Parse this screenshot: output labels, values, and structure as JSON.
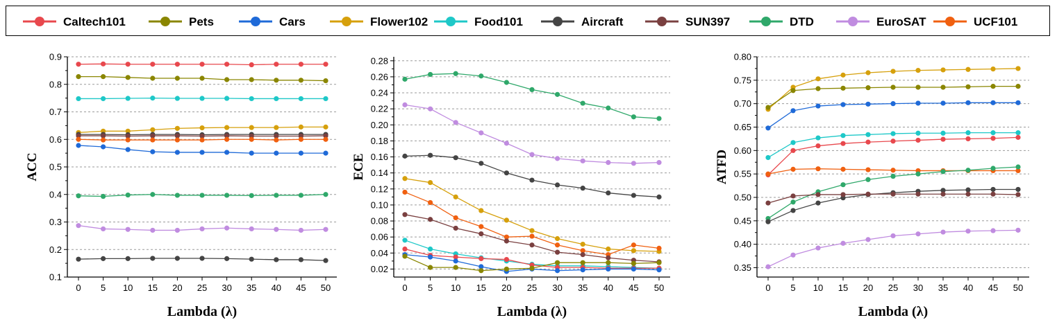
{
  "legend": {
    "entries": [
      {
        "name": "Caltech101",
        "color": "#e8484d"
      },
      {
        "name": "Pets",
        "color": "#8a8600"
      },
      {
        "name": "Cars",
        "color": "#1f6ad8"
      },
      {
        "name": "Flower102",
        "color": "#d6a00c"
      },
      {
        "name": "Food101",
        "color": "#1ec8c8"
      },
      {
        "name": "Aircraft",
        "color": "#444444"
      },
      {
        "name": "SUN397",
        "color": "#7a4040"
      },
      {
        "name": "DTD",
        "color": "#2fa86a"
      },
      {
        "name": "EuroSAT",
        "color": "#c08ce0"
      },
      {
        "name": "UCF101",
        "color": "#f06010"
      }
    ]
  },
  "chart_data": [
    {
      "type": "line",
      "ylabel": "ACC",
      "xlabel": "Lambda (λ)",
      "x": [
        0,
        5,
        10,
        15,
        20,
        25,
        30,
        35,
        40,
        45,
        50
      ],
      "ylim": [
        0.1,
        0.9
      ],
      "yticks": [
        "0.1",
        "0.2",
        "0.3",
        "0.4",
        "0.5",
        "0.6",
        "0.7",
        "0.8",
        "0.9"
      ],
      "grid": "dashed-horizontal",
      "series": [
        {
          "name": "Caltech101",
          "values": [
            0.873,
            0.874,
            0.873,
            0.873,
            0.873,
            0.873,
            0.873,
            0.871,
            0.873,
            0.873,
            0.873
          ]
        },
        {
          "name": "Pets",
          "values": [
            0.828,
            0.828,
            0.825,
            0.822,
            0.822,
            0.822,
            0.817,
            0.817,
            0.815,
            0.815,
            0.813
          ]
        },
        {
          "name": "Food101",
          "values": [
            0.748,
            0.748,
            0.749,
            0.75,
            0.749,
            0.749,
            0.749,
            0.748,
            0.748,
            0.748,
            0.748
          ]
        },
        {
          "name": "Flower102",
          "values": [
            0.625,
            0.63,
            0.63,
            0.635,
            0.64,
            0.642,
            0.643,
            0.643,
            0.643,
            0.645,
            0.645
          ]
        },
        {
          "name": "Aircraft",
          "values": [
            0.618,
            0.618,
            0.617,
            0.618,
            0.618,
            0.617,
            0.618,
            0.618,
            0.618,
            0.618,
            0.618
          ]
        },
        {
          "name": "SUN397",
          "values": [
            0.613,
            0.613,
            0.612,
            0.613,
            0.613,
            0.612,
            0.613,
            0.612,
            0.612,
            0.612,
            0.613
          ]
        },
        {
          "name": "UCF101",
          "values": [
            0.6,
            0.598,
            0.598,
            0.598,
            0.598,
            0.598,
            0.6,
            0.6,
            0.598,
            0.6,
            0.6
          ]
        },
        {
          "name": "Cars",
          "values": [
            0.578,
            0.573,
            0.563,
            0.555,
            0.553,
            0.553,
            0.553,
            0.55,
            0.55,
            0.55,
            0.55
          ]
        },
        {
          "name": "DTD",
          "values": [
            0.395,
            0.393,
            0.398,
            0.4,
            0.397,
            0.397,
            0.397,
            0.396,
            0.397,
            0.397,
            0.4
          ]
        },
        {
          "name": "EuroSAT",
          "values": [
            0.287,
            0.275,
            0.273,
            0.27,
            0.27,
            0.275,
            0.278,
            0.275,
            0.273,
            0.27,
            0.273
          ]
        },
        {
          "name": "Aircraft",
          "values": [
            0.165,
            0.167,
            0.167,
            0.168,
            0.168,
            0.168,
            0.167,
            0.165,
            0.163,
            0.163,
            0.16
          ]
        }
      ]
    },
    {
      "type": "line",
      "ylabel": "ECE",
      "xlabel": "Lambda (λ)",
      "x": [
        0,
        5,
        10,
        15,
        20,
        25,
        30,
        35,
        40,
        45,
        50
      ],
      "ylim": [
        0.01,
        0.285
      ],
      "yticks": [
        "0.02",
        "0.04",
        "0.06",
        "0.08",
        "0.10",
        "0.12",
        "0.14",
        "0.16",
        "0.18",
        "0.20",
        "0.22",
        "0.24",
        "0.26",
        "0.28"
      ],
      "grid": "dashed-horizontal",
      "series": [
        {
          "name": "DTD",
          "values": [
            0.257,
            0.263,
            0.264,
            0.261,
            0.253,
            0.244,
            0.238,
            0.227,
            0.221,
            0.21,
            0.208
          ]
        },
        {
          "name": "EuroSAT",
          "values": [
            0.225,
            0.22,
            0.203,
            0.19,
            0.177,
            0.163,
            0.158,
            0.155,
            0.153,
            0.152,
            0.153
          ]
        },
        {
          "name": "Aircraft",
          "values": [
            0.161,
            0.162,
            0.159,
            0.152,
            0.14,
            0.131,
            0.125,
            0.121,
            0.115,
            0.112,
            0.11
          ]
        },
        {
          "name": "Flower102",
          "values": [
            0.133,
            0.128,
            0.11,
            0.093,
            0.081,
            0.068,
            0.058,
            0.051,
            0.045,
            0.043,
            0.042
          ]
        },
        {
          "name": "UCF101",
          "values": [
            0.116,
            0.103,
            0.084,
            0.073,
            0.06,
            0.061,
            0.05,
            0.043,
            0.038,
            0.05,
            0.046
          ]
        },
        {
          "name": "SUN397",
          "values": [
            0.088,
            0.082,
            0.071,
            0.064,
            0.055,
            0.05,
            0.041,
            0.038,
            0.034,
            0.031,
            0.029
          ]
        },
        {
          "name": "Food101",
          "values": [
            0.056,
            0.045,
            0.039,
            0.034,
            0.03,
            0.026,
            0.024,
            0.024,
            0.023,
            0.022,
            0.021
          ]
        },
        {
          "name": "Caltech101",
          "values": [
            0.045,
            0.037,
            0.035,
            0.033,
            0.032,
            0.025,
            0.022,
            0.022,
            0.021,
            0.021,
            0.021
          ]
        },
        {
          "name": "Cars",
          "values": [
            0.038,
            0.035,
            0.03,
            0.023,
            0.017,
            0.02,
            0.018,
            0.019,
            0.02,
            0.02,
            0.019
          ]
        },
        {
          "name": "Pets",
          "values": [
            0.036,
            0.022,
            0.022,
            0.018,
            0.02,
            0.021,
            0.028,
            0.028,
            0.028,
            0.027,
            0.028
          ]
        }
      ]
    },
    {
      "type": "line",
      "ylabel": "ATFD",
      "xlabel": "Lambda (λ)",
      "x": [
        0,
        5,
        10,
        15,
        20,
        25,
        30,
        35,
        40,
        45,
        50
      ],
      "ylim": [
        0.33,
        0.8
      ],
      "yticks": [
        "0.35",
        "0.40",
        "0.45",
        "0.50",
        "0.55",
        "0.60",
        "0.65",
        "0.70",
        "0.75",
        "0.80"
      ],
      "grid": "dashed-horizontal",
      "series": [
        {
          "name": "Flower102",
          "values": [
            0.688,
            0.735,
            0.753,
            0.761,
            0.766,
            0.769,
            0.771,
            0.772,
            0.773,
            0.774,
            0.775
          ]
        },
        {
          "name": "Pets",
          "values": [
            0.692,
            0.728,
            0.732,
            0.733,
            0.734,
            0.735,
            0.735,
            0.735,
            0.736,
            0.737,
            0.737
          ]
        },
        {
          "name": "Cars",
          "values": [
            0.648,
            0.685,
            0.695,
            0.698,
            0.699,
            0.7,
            0.701,
            0.701,
            0.702,
            0.702,
            0.702
          ]
        },
        {
          "name": "Food101",
          "values": [
            0.585,
            0.617,
            0.627,
            0.632,
            0.634,
            0.636,
            0.637,
            0.637,
            0.638,
            0.638,
            0.638
          ]
        },
        {
          "name": "Caltech101",
          "values": [
            0.548,
            0.6,
            0.61,
            0.615,
            0.618,
            0.62,
            0.622,
            0.624,
            0.625,
            0.626,
            0.628
          ]
        },
        {
          "name": "UCF101",
          "values": [
            0.55,
            0.56,
            0.561,
            0.56,
            0.559,
            0.558,
            0.557,
            0.557,
            0.557,
            0.557,
            0.557
          ]
        },
        {
          "name": "DTD",
          "values": [
            0.455,
            0.49,
            0.512,
            0.527,
            0.538,
            0.545,
            0.55,
            0.555,
            0.558,
            0.562,
            0.565
          ]
        },
        {
          "name": "Aircraft",
          "values": [
            0.448,
            0.472,
            0.488,
            0.499,
            0.506,
            0.51,
            0.513,
            0.515,
            0.516,
            0.517,
            0.517
          ]
        },
        {
          "name": "SUN397",
          "values": [
            0.488,
            0.503,
            0.506,
            0.506,
            0.507,
            0.507,
            0.507,
            0.507,
            0.507,
            0.507,
            0.506
          ]
        },
        {
          "name": "EuroSAT",
          "values": [
            0.352,
            0.377,
            0.392,
            0.402,
            0.41,
            0.418,
            0.422,
            0.426,
            0.428,
            0.429,
            0.43
          ]
        }
      ]
    }
  ]
}
